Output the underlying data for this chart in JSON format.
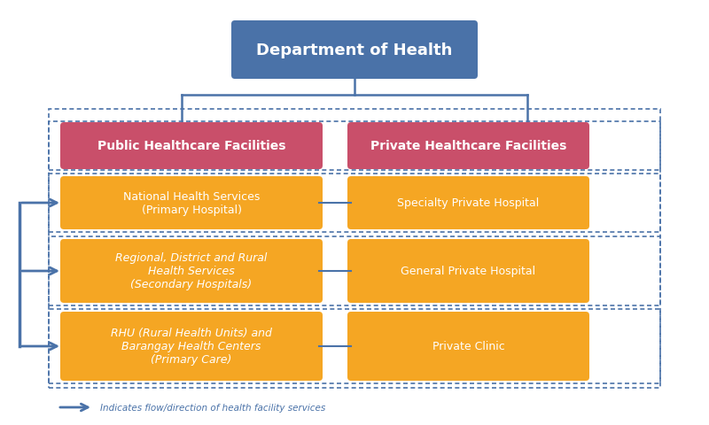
{
  "bg_color": "#ffffff",
  "title": "Department of Health",
  "title_box_color": "#4a72a8",
  "title_text_color": "#ffffff",
  "red_box_color": "#c94f6a",
  "orange_box_color": "#f5a623",
  "dashed_border_color": "#4a72a8",
  "arrow_color": "#4a72a8",
  "public_label": "Public Healthcare Facilities",
  "private_label": "Private Healthcare Facilities",
  "left_box_0": "National Health Services\n(Primary Hospital)",
  "left_box_1": "Regional, District and Rural\nHealth Services\n(Secondary Hospitals)",
  "left_box_2": "RHU (Rural Health Units) and\nBarangay Health Centers\n(Primary Care)",
  "right_box_0": "Specialty Private Hospital",
  "right_box_1": "General Private Hospital",
  "right_box_2": "Private Clinic",
  "legend_text": "Indicates flow/direction of health facility services",
  "fig_w": 8.0,
  "fig_h": 4.81
}
